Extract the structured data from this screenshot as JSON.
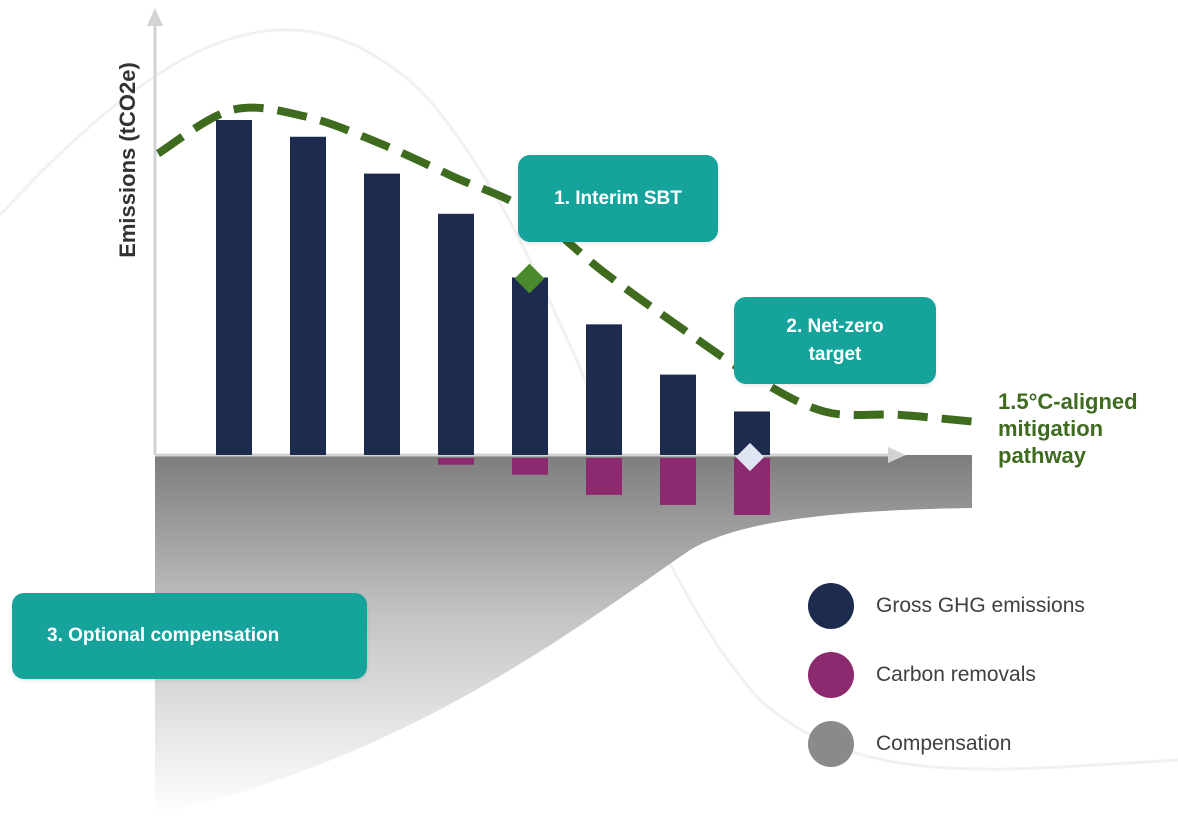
{
  "chart_data": {
    "type": "bar",
    "title": "",
    "ylabel": "Emissions (tCO2e)",
    "xlabel": "",
    "categories": [
      "",
      "",
      "",
      "",
      "",
      "",
      "",
      ""
    ],
    "series": [
      {
        "name": "Gross GHG emissions",
        "color": "#1c2b4e",
        "values": [
          100,
          95,
          84,
          72,
          53,
          39,
          24,
          13
        ]
      },
      {
        "name": "Carbon removals",
        "color": "#8b2a6e",
        "values": [
          0,
          0,
          0,
          -2,
          -5,
          -11,
          -14,
          -17
        ]
      }
    ],
    "pathway": {
      "name": "1.5°C-aligned mitigation pathway",
      "color": "#3f6b1f",
      "points": [
        [
          0,
          90
        ],
        [
          1,
          103
        ],
        [
          2,
          101
        ],
        [
          3,
          93
        ],
        [
          4,
          83
        ],
        [
          5,
          73
        ],
        [
          6,
          55
        ],
        [
          7,
          39
        ],
        [
          8,
          24
        ],
        [
          9,
          13
        ],
        [
          10,
          12
        ],
        [
          11,
          10
        ]
      ]
    },
    "ylim": [
      -100,
      105
    ],
    "grid": false,
    "legend_position": "bottom-right"
  },
  "callouts": {
    "interim": "1. Interim SBT",
    "netzero_line1": "2. Net-zero",
    "netzero_line2": "target",
    "compensation": "3. Optional compensation"
  },
  "pathway_label": {
    "line1": "1.5°C-aligned",
    "line2": "mitigation",
    "line3": "pathway"
  },
  "legend": {
    "gross": {
      "label": "Gross GHG emissions",
      "color": "#1c2b4e"
    },
    "removals": {
      "label": "Carbon removals",
      "color": "#8b2a6e"
    },
    "compensation": {
      "label": "Compensation",
      "color": "#8a8a8a"
    }
  },
  "colors": {
    "callout": "#15a39c",
    "axis": "#d0d0d0",
    "milestone_interim": "#4b8a2c",
    "milestone_netzero": "#dfe5f2"
  }
}
